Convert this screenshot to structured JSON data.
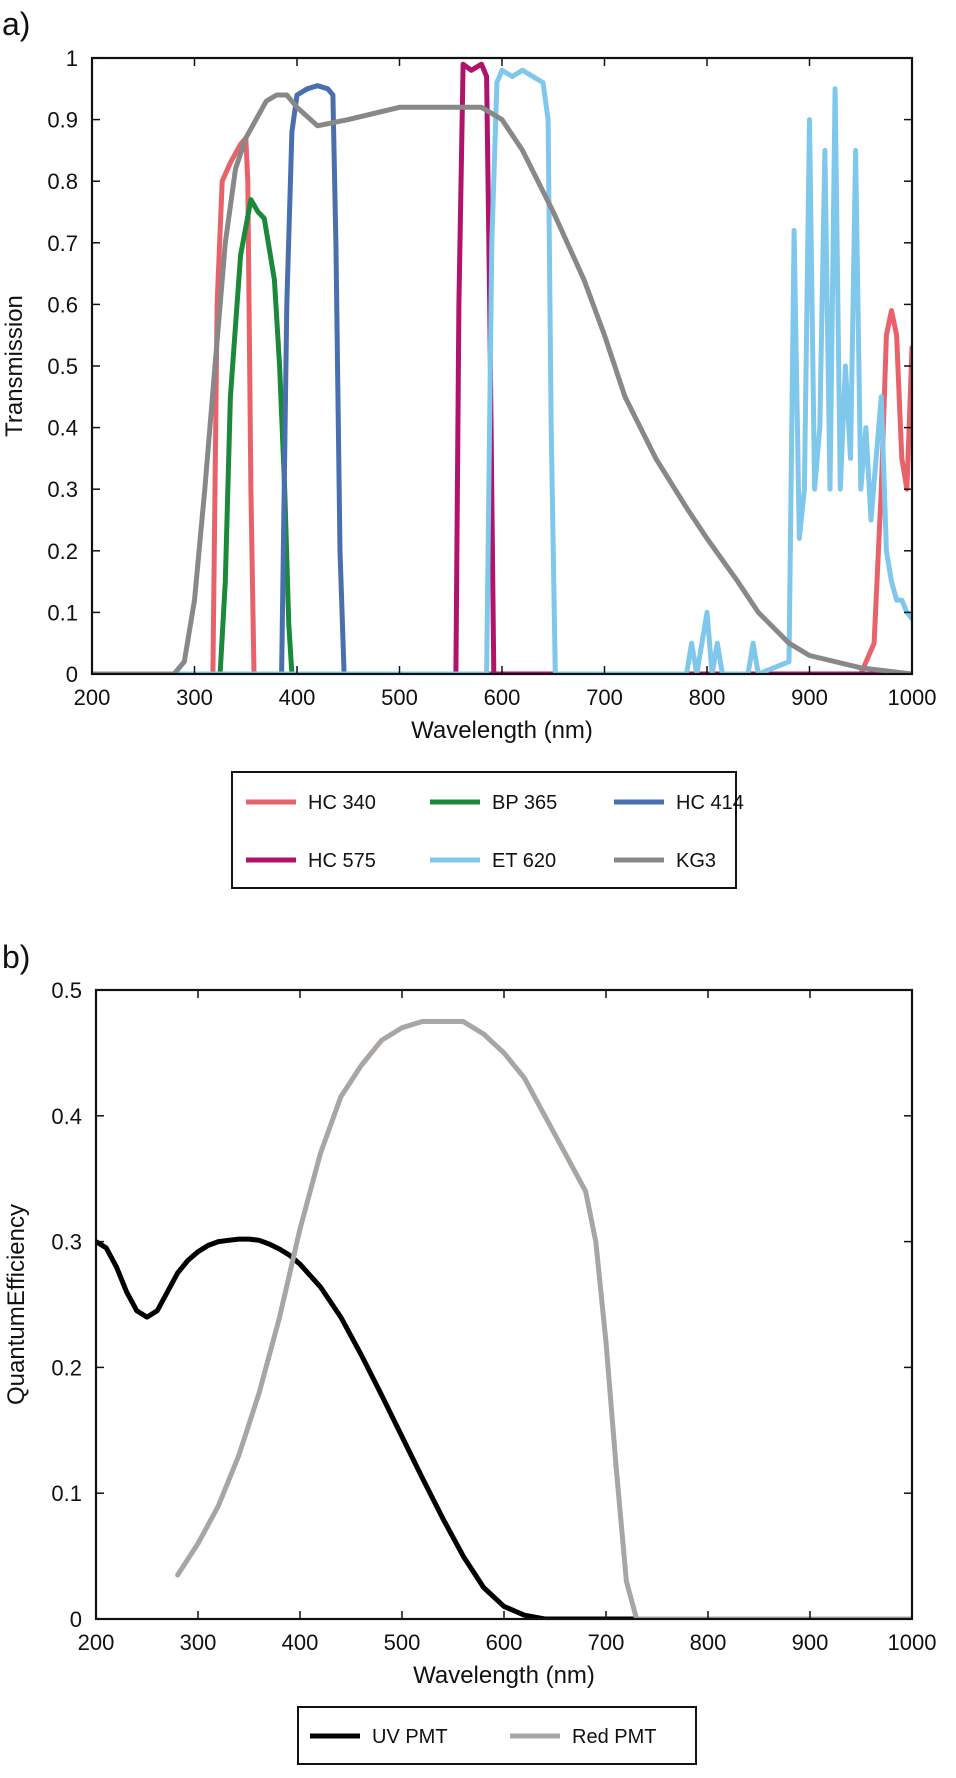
{
  "chart_data": [
    {
      "panel": "a)",
      "type": "line",
      "xlabel": "Wavelength (nm)",
      "ylabel": "Transmission",
      "xlim": [
        200,
        1000
      ],
      "ylim": [
        0,
        1
      ],
      "xticks": [
        200,
        300,
        400,
        500,
        600,
        700,
        800,
        900,
        1000
      ],
      "yticks": [
        0,
        0.1,
        0.2,
        0.3,
        0.4,
        0.5,
        0.6,
        0.7,
        0.8,
        0.9,
        1
      ],
      "ytick_labels": [
        "0",
        "0.1",
        "0.2",
        "0.3",
        "0.4",
        "0.5",
        "0.6",
        "0.7",
        "0.8",
        "0.9",
        "1"
      ],
      "grid": false,
      "legend_position": "below, 3 columns",
      "series": [
        {
          "name": "HC 340",
          "color": "#e8626b",
          "x": [
            200,
            318,
            322,
            327,
            335,
            345,
            350,
            352,
            355,
            358,
            400,
            950,
            963,
            970,
            975,
            980,
            985,
            990,
            995,
            1000
          ],
          "y": [
            0,
            0,
            0.6,
            0.8,
            0.83,
            0.86,
            0.87,
            0.8,
            0.3,
            0,
            0,
            0,
            0.05,
            0.3,
            0.55,
            0.59,
            0.55,
            0.35,
            0.3,
            0.53
          ]
        },
        {
          "name": "BP 365",
          "color": "#1a8a3a",
          "x": [
            200,
            325,
            330,
            335,
            345,
            355,
            362,
            368,
            372,
            378,
            383,
            388,
            392,
            395,
            1000
          ],
          "y": [
            0,
            0,
            0.15,
            0.45,
            0.68,
            0.77,
            0.75,
            0.74,
            0.7,
            0.64,
            0.5,
            0.3,
            0.08,
            0,
            0
          ]
        },
        {
          "name": "HC 414",
          "color": "#4a6fae",
          "x": [
            200,
            385,
            390,
            395,
            400,
            410,
            420,
            430,
            435,
            438,
            442,
            446,
            1000
          ],
          "y": [
            0,
            0,
            0.6,
            0.88,
            0.94,
            0.95,
            0.955,
            0.95,
            0.94,
            0.7,
            0.2,
            0,
            0
          ]
        },
        {
          "name": "HC 575",
          "color": "#b0136b",
          "x": [
            200,
            555,
            558,
            562,
            570,
            580,
            585,
            588,
            592,
            1000
          ],
          "y": [
            0,
            0,
            0.6,
            0.99,
            0.98,
            0.99,
            0.97,
            0.6,
            0,
            0
          ]
        },
        {
          "name": "ET 620",
          "color": "#7fc8ec",
          "x": [
            200,
            585,
            590,
            595,
            600,
            610,
            620,
            630,
            640,
            645,
            648,
            652,
            780,
            785,
            790,
            800,
            805,
            810,
            815,
            840,
            845,
            850,
            880,
            885,
            890,
            895,
            900,
            905,
            910,
            915,
            920,
            925,
            930,
            935,
            940,
            945,
            950,
            955,
            960,
            965,
            970,
            975,
            980,
            985,
            990,
            995,
            1000
          ],
          "y": [
            0,
            0,
            0.7,
            0.96,
            0.98,
            0.97,
            0.98,
            0.97,
            0.96,
            0.9,
            0.4,
            0,
            0,
            0.05,
            0,
            0.1,
            0,
            0.05,
            0,
            0,
            0.05,
            0,
            0.02,
            0.72,
            0.22,
            0.3,
            0.9,
            0.3,
            0.4,
            0.85,
            0.3,
            0.95,
            0.3,
            0.5,
            0.35,
            0.85,
            0.3,
            0.4,
            0.25,
            0.35,
            0.45,
            0.2,
            0.15,
            0.12,
            0.12,
            0.1,
            0.09
          ]
        },
        {
          "name": "KG3",
          "color": "#888888",
          "x": [
            200,
            280,
            290,
            300,
            310,
            320,
            330,
            340,
            350,
            360,
            370,
            380,
            390,
            400,
            420,
            450,
            500,
            550,
            580,
            600,
            620,
            650,
            680,
            700,
            720,
            750,
            780,
            800,
            830,
            850,
            880,
            900,
            950,
            1000
          ],
          "y": [
            0,
            0,
            0.02,
            0.12,
            0.3,
            0.5,
            0.7,
            0.82,
            0.87,
            0.9,
            0.93,
            0.94,
            0.94,
            0.92,
            0.89,
            0.9,
            0.92,
            0.92,
            0.92,
            0.9,
            0.85,
            0.75,
            0.64,
            0.55,
            0.45,
            0.35,
            0.27,
            0.22,
            0.15,
            0.1,
            0.05,
            0.03,
            0.01,
            0
          ]
        }
      ]
    },
    {
      "panel": "b)",
      "type": "line",
      "xlabel": "Wavelength (nm)",
      "ylabel": "QuantumEfficiency",
      "xlim": [
        200,
        1000
      ],
      "ylim": [
        0,
        0.5
      ],
      "xticks": [
        200,
        300,
        400,
        500,
        600,
        700,
        800,
        900,
        1000
      ],
      "yticks": [
        0,
        0.1,
        0.2,
        0.3,
        0.4,
        0.5
      ],
      "ytick_labels": [
        "0",
        "0.1",
        "0.2",
        "0.3",
        "0.4",
        "0.5"
      ],
      "grid": false,
      "legend_position": "below, 2 columns",
      "series": [
        {
          "name": "UV PMT",
          "color": "#000000",
          "x": [
            200,
            210,
            220,
            230,
            240,
            250,
            260,
            270,
            280,
            290,
            300,
            310,
            320,
            330,
            340,
            350,
            360,
            370,
            380,
            390,
            400,
            420,
            440,
            460,
            480,
            500,
            520,
            540,
            560,
            580,
            600,
            620,
            640,
            660,
            700,
            800,
            900,
            1000
          ],
          "y": [
            0.3,
            0.295,
            0.28,
            0.26,
            0.245,
            0.24,
            0.245,
            0.26,
            0.275,
            0.285,
            0.292,
            0.297,
            0.3,
            0.301,
            0.302,
            0.302,
            0.301,
            0.298,
            0.294,
            0.289,
            0.282,
            0.264,
            0.24,
            0.21,
            0.178,
            0.145,
            0.112,
            0.08,
            0.05,
            0.025,
            0.01,
            0.003,
            0,
            0,
            0,
            0,
            0,
            0
          ]
        },
        {
          "name": "Red PMT",
          "color": "#a8a5a2",
          "x": [
            280,
            300,
            320,
            340,
            360,
            380,
            400,
            420,
            440,
            460,
            480,
            500,
            520,
            540,
            560,
            580,
            600,
            620,
            640,
            660,
            680,
            690,
            700,
            710,
            720,
            730,
            800,
            900,
            1000
          ],
          "y": [
            0.035,
            0.06,
            0.09,
            0.13,
            0.18,
            0.24,
            0.31,
            0.37,
            0.415,
            0.44,
            0.46,
            0.47,
            0.475,
            0.475,
            0.475,
            0.465,
            0.45,
            0.43,
            0.4,
            0.37,
            0.34,
            0.3,
            0.22,
            0.12,
            0.03,
            0,
            0,
            0,
            0
          ]
        }
      ]
    }
  ]
}
